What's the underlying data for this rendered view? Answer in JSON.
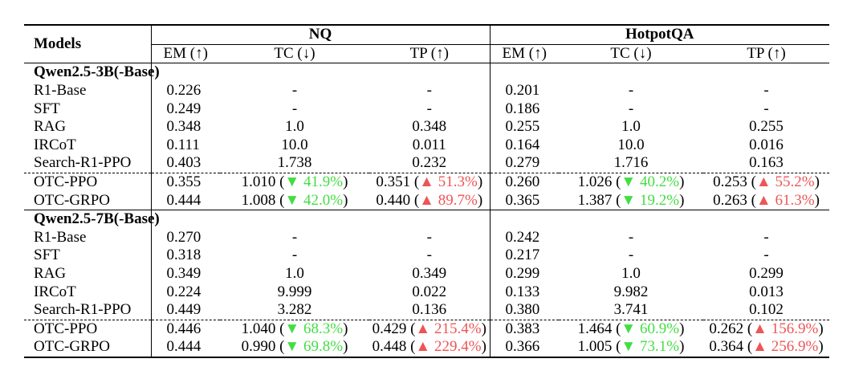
{
  "header": {
    "models_label": "Models",
    "groups": [
      "NQ",
      "HotpotQA"
    ],
    "metrics": [
      "EM (↑)",
      "TC (↓)",
      "TP (↑)",
      "EM (↑)",
      "TC (↓)",
      "TP (↑)"
    ]
  },
  "sections": [
    {
      "title": "Qwen2.5-3B(-Base)",
      "rows": [
        {
          "model": "R1-Base",
          "cells": [
            {
              "v": "0.226"
            },
            {
              "v": "-"
            },
            {
              "v": "-"
            },
            {
              "v": "0.201"
            },
            {
              "v": "-"
            },
            {
              "v": "-"
            }
          ]
        },
        {
          "model": "SFT",
          "cells": [
            {
              "v": "0.249"
            },
            {
              "v": "-"
            },
            {
              "v": "-"
            },
            {
              "v": "0.186"
            },
            {
              "v": "-"
            },
            {
              "v": "-"
            }
          ]
        },
        {
          "model": "RAG",
          "cells": [
            {
              "v": "0.348"
            },
            {
              "v": "1.0"
            },
            {
              "v": "0.348"
            },
            {
              "v": "0.255"
            },
            {
              "v": "1.0"
            },
            {
              "v": "0.255"
            }
          ]
        },
        {
          "model": "IRCoT",
          "cells": [
            {
              "v": "0.111"
            },
            {
              "v": "10.0"
            },
            {
              "v": "0.011"
            },
            {
              "v": "0.164"
            },
            {
              "v": "10.0"
            },
            {
              "v": "0.016"
            }
          ]
        },
        {
          "model": "Search-R1-PPO",
          "cells": [
            {
              "v": "0.403"
            },
            {
              "v": "1.738"
            },
            {
              "v": "0.232"
            },
            {
              "v": "0.279"
            },
            {
              "v": "1.716"
            },
            {
              "v": "0.163"
            }
          ]
        },
        {
          "model": "OTC-PPO",
          "dashed": true,
          "cells": [
            {
              "v": "0.355"
            },
            {
              "v": "1.010",
              "delta": "▼ 41.9%",
              "dir": "down"
            },
            {
              "v": "0.351",
              "delta": "▲ 51.3%",
              "dir": "up"
            },
            {
              "v": "0.260"
            },
            {
              "v": "1.026",
              "delta": "▼ 40.2%",
              "dir": "down"
            },
            {
              "v": "0.253",
              "delta": "▲ 55.2%",
              "dir": "up"
            }
          ]
        },
        {
          "model": "OTC-GRPO",
          "cells": [
            {
              "v": "0.444"
            },
            {
              "v": "1.008",
              "delta": "▼ 42.0%",
              "dir": "down"
            },
            {
              "v": "0.440",
              "delta": "▲ 89.7%",
              "dir": "up"
            },
            {
              "v": "0.365"
            },
            {
              "v": "1.387",
              "delta": "▼ 19.2%",
              "dir": "down"
            },
            {
              "v": "0.263",
              "delta": "▲ 61.3%",
              "dir": "up"
            }
          ]
        }
      ]
    },
    {
      "title": "Qwen2.5-7B(-Base)",
      "rows": [
        {
          "model": "R1-Base",
          "cells": [
            {
              "v": "0.270"
            },
            {
              "v": "-"
            },
            {
              "v": "-"
            },
            {
              "v": "0.242"
            },
            {
              "v": "-"
            },
            {
              "v": "-"
            }
          ]
        },
        {
          "model": "SFT",
          "cells": [
            {
              "v": "0.318"
            },
            {
              "v": "-"
            },
            {
              "v": "-"
            },
            {
              "v": "0.217"
            },
            {
              "v": "-"
            },
            {
              "v": "-"
            }
          ]
        },
        {
          "model": "RAG",
          "cells": [
            {
              "v": "0.349"
            },
            {
              "v": "1.0"
            },
            {
              "v": "0.349"
            },
            {
              "v": "0.299"
            },
            {
              "v": "1.0"
            },
            {
              "v": "0.299"
            }
          ]
        },
        {
          "model": "IRCoT",
          "cells": [
            {
              "v": "0.224"
            },
            {
              "v": "9.999"
            },
            {
              "v": "0.022"
            },
            {
              "v": "0.133"
            },
            {
              "v": "9.982"
            },
            {
              "v": "0.013"
            }
          ]
        },
        {
          "model": "Search-R1-PPO",
          "cells": [
            {
              "v": "0.449"
            },
            {
              "v": "3.282"
            },
            {
              "v": "0.136"
            },
            {
              "v": "0.380"
            },
            {
              "v": "3.741"
            },
            {
              "v": "0.102"
            }
          ]
        },
        {
          "model": "OTC-PPO",
          "dashed": true,
          "cells": [
            {
              "v": "0.446"
            },
            {
              "v": "1.040",
              "delta": "▼ 68.3%",
              "dir": "down"
            },
            {
              "v": "0.429",
              "delta": "▲ 215.4%",
              "dir": "up"
            },
            {
              "v": "0.383"
            },
            {
              "v": "1.464",
              "delta": "▼ 60.9%",
              "dir": "down"
            },
            {
              "v": "0.262",
              "delta": "▲ 156.9%",
              "dir": "up"
            }
          ]
        },
        {
          "model": "OTC-GRPO",
          "cells": [
            {
              "v": "0.444"
            },
            {
              "v": "0.990",
              "delta": "▼ 69.8%",
              "dir": "down"
            },
            {
              "v": "0.448",
              "delta": "▲ 229.4%",
              "dir": "up"
            },
            {
              "v": "0.366"
            },
            {
              "v": "1.005",
              "delta": "▼ 73.1%",
              "dir": "down"
            },
            {
              "v": "0.364",
              "delta": "▲ 256.9%",
              "dir": "up"
            }
          ]
        }
      ]
    }
  ],
  "colors": {
    "decrease": "#44dd44",
    "increase": "#ee5555"
  }
}
